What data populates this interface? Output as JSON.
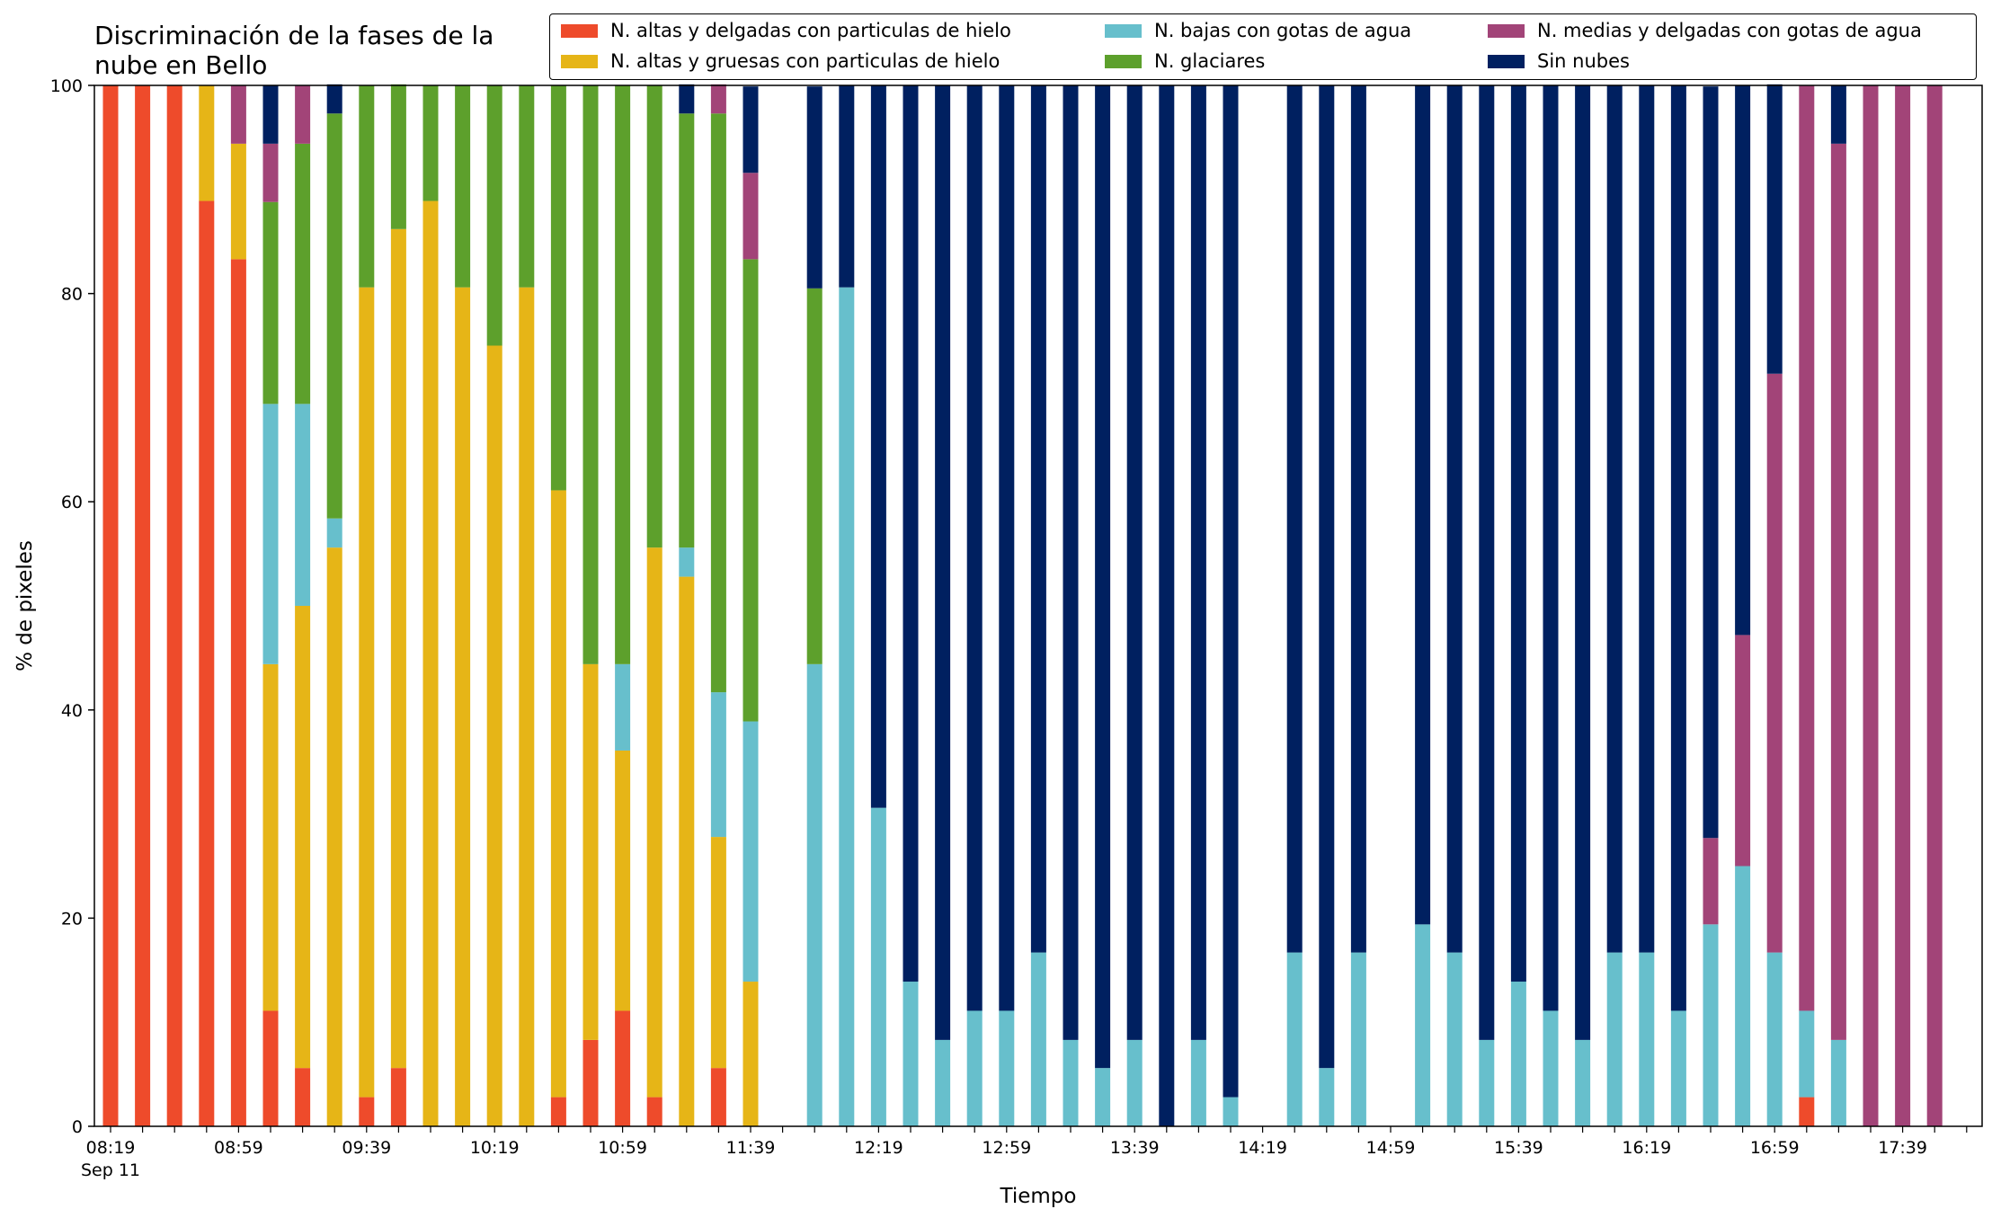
{
  "chart_data": {
    "type": "bar",
    "stacked": true,
    "title_lines": [
      "Discriminación de la fases de la",
      "nube en Bello"
    ],
    "xlabel": "Tiempo",
    "ylabel": "% de pixeles",
    "ylim": [
      0,
      100
    ],
    "yticks": [
      0,
      20,
      40,
      60,
      80,
      100
    ],
    "grid": false,
    "legend_position": "top-right",
    "x_slots": 59,
    "x_tick_labels": [
      {
        "slot": 0,
        "label": "08:19",
        "sublabel": "Sep 11"
      },
      {
        "slot": 4,
        "label": "08:59"
      },
      {
        "slot": 8,
        "label": "09:39"
      },
      {
        "slot": 12,
        "label": "10:19"
      },
      {
        "slot": 16,
        "label": "10:59"
      },
      {
        "slot": 20,
        "label": "11:39"
      },
      {
        "slot": 24,
        "label": "12:19"
      },
      {
        "slot": 28,
        "label": "12:59"
      },
      {
        "slot": 32,
        "label": "13:39"
      },
      {
        "slot": 36,
        "label": "14:19"
      },
      {
        "slot": 40,
        "label": "14:59"
      },
      {
        "slot": 44,
        "label": "15:39"
      },
      {
        "slot": 48,
        "label": "16:19"
      },
      {
        "slot": 52,
        "label": "16:59"
      },
      {
        "slot": 56,
        "label": "17:39"
      }
    ],
    "series": [
      {
        "name": "N. altas y delgadas con particulas de hielo",
        "color": "#ee4b2b"
      },
      {
        "name": "N. altas y gruesas con particulas de hielo",
        "color": "#e6b517"
      },
      {
        "name": "N. bajas con gotas de agua",
        "color": "#67bfcc"
      },
      {
        "name": "N. glaciares",
        "color": "#5da02c"
      },
      {
        "name": "N. medias y delgadas con gotas de agua",
        "color": "#a24478"
      },
      {
        "name": "Sin nubes",
        "color": "#002060"
      }
    ],
    "bars": [
      {
        "slot": 0,
        "values": [
          100,
          0,
          0,
          0,
          0,
          0
        ]
      },
      {
        "slot": 1,
        "values": [
          100,
          0,
          0,
          0,
          0,
          0
        ]
      },
      {
        "slot": 2,
        "values": [
          100,
          0,
          0,
          0,
          0,
          0
        ]
      },
      {
        "slot": 3,
        "values": [
          88.9,
          11.1,
          0,
          0,
          0,
          0
        ]
      },
      {
        "slot": 4,
        "values": [
          83.3,
          11.1,
          0,
          0,
          5.6,
          0
        ]
      },
      {
        "slot": 5,
        "values": [
          11.1,
          33.3,
          25,
          19.4,
          5.6,
          5.6
        ]
      },
      {
        "slot": 6,
        "values": [
          5.6,
          44.4,
          19.4,
          25,
          5.6,
          0
        ]
      },
      {
        "slot": 7,
        "values": [
          0,
          55.6,
          2.8,
          38.9,
          0,
          2.8
        ]
      },
      {
        "slot": 8,
        "values": [
          2.8,
          77.8,
          0,
          19.4,
          0,
          0
        ]
      },
      {
        "slot": 9,
        "values": [
          5.6,
          80.6,
          0,
          13.9,
          0,
          0
        ]
      },
      {
        "slot": 10,
        "values": [
          0,
          88.9,
          0,
          11.1,
          0,
          0
        ]
      },
      {
        "slot": 11,
        "values": [
          0,
          80.6,
          0,
          19.4,
          0,
          0
        ]
      },
      {
        "slot": 12,
        "values": [
          0,
          75,
          0,
          25,
          0,
          0
        ]
      },
      {
        "slot": 13,
        "values": [
          0,
          80.6,
          0,
          19.4,
          0,
          0
        ]
      },
      {
        "slot": 14,
        "values": [
          2.8,
          58.3,
          0,
          38.9,
          0,
          0
        ]
      },
      {
        "slot": 15,
        "values": [
          8.3,
          36.1,
          0,
          55.6,
          0,
          0
        ]
      },
      {
        "slot": 16,
        "values": [
          11.1,
          25,
          8.3,
          55.6,
          0,
          0
        ]
      },
      {
        "slot": 17,
        "values": [
          2.8,
          52.8,
          0,
          44.4,
          0,
          0
        ]
      },
      {
        "slot": 18,
        "values": [
          0,
          52.8,
          2.8,
          41.7,
          0,
          2.8
        ]
      },
      {
        "slot": 19,
        "values": [
          5.6,
          22.2,
          13.9,
          55.6,
          2.8,
          0
        ]
      },
      {
        "slot": 20,
        "values": [
          0,
          13.9,
          25,
          44.4,
          8.3,
          8.3
        ]
      },
      {
        "slot": 22,
        "values": [
          0,
          0,
          44.4,
          36.1,
          0,
          19.4
        ]
      },
      {
        "slot": 23,
        "values": [
          0,
          0,
          80.6,
          0,
          0,
          19.4
        ]
      },
      {
        "slot": 24,
        "values": [
          0,
          0,
          30.6,
          0,
          0,
          69.4
        ]
      },
      {
        "slot": 25,
        "values": [
          0,
          0,
          13.9,
          0,
          0,
          86.1
        ]
      },
      {
        "slot": 26,
        "values": [
          0,
          0,
          8.3,
          0,
          0,
          91.7
        ]
      },
      {
        "slot": 27,
        "values": [
          0,
          0,
          11.1,
          0,
          0,
          88.9
        ]
      },
      {
        "slot": 28,
        "values": [
          0,
          0,
          11.1,
          0,
          0,
          88.9
        ]
      },
      {
        "slot": 29,
        "values": [
          0,
          0,
          16.7,
          0,
          0,
          83.3
        ]
      },
      {
        "slot": 30,
        "values": [
          0,
          0,
          8.3,
          0,
          0,
          91.7
        ]
      },
      {
        "slot": 31,
        "values": [
          0,
          0,
          5.6,
          0,
          0,
          94.4
        ]
      },
      {
        "slot": 32,
        "values": [
          0,
          0,
          8.3,
          0,
          0,
          91.7
        ]
      },
      {
        "slot": 33,
        "values": [
          0,
          0,
          0,
          0,
          0,
          100
        ]
      },
      {
        "slot": 34,
        "values": [
          0,
          0,
          8.3,
          0,
          0,
          91.7
        ]
      },
      {
        "slot": 35,
        "values": [
          0,
          0,
          2.8,
          0,
          0,
          97.2
        ]
      },
      {
        "slot": 37,
        "values": [
          0,
          0,
          16.7,
          0,
          0,
          83.3
        ]
      },
      {
        "slot": 38,
        "values": [
          0,
          0,
          5.6,
          0,
          0,
          94.4
        ]
      },
      {
        "slot": 39,
        "values": [
          0,
          0,
          16.7,
          0,
          0,
          83.3
        ]
      },
      {
        "slot": 41,
        "values": [
          0,
          0,
          19.4,
          0,
          0,
          80.6
        ]
      },
      {
        "slot": 42,
        "values": [
          0,
          0,
          16.7,
          0,
          0,
          83.3
        ]
      },
      {
        "slot": 43,
        "values": [
          0,
          0,
          8.3,
          0,
          0,
          91.7
        ]
      },
      {
        "slot": 44,
        "values": [
          0,
          0,
          13.9,
          0,
          0,
          86.1
        ]
      },
      {
        "slot": 45,
        "values": [
          0,
          0,
          11.1,
          0,
          0,
          88.9
        ]
      },
      {
        "slot": 46,
        "values": [
          0,
          0,
          8.3,
          0,
          0,
          91.7
        ]
      },
      {
        "slot": 47,
        "values": [
          0,
          0,
          16.7,
          0,
          0,
          83.3
        ]
      },
      {
        "slot": 48,
        "values": [
          0,
          0,
          16.7,
          0,
          0,
          83.3
        ]
      },
      {
        "slot": 49,
        "values": [
          0,
          0,
          11.1,
          0,
          0,
          88.9
        ]
      },
      {
        "slot": 50,
        "values": [
          0,
          0,
          19.4,
          0,
          8.3,
          72.2
        ]
      },
      {
        "slot": 51,
        "values": [
          0,
          0,
          25,
          0,
          22.2,
          52.8
        ]
      },
      {
        "slot": 52,
        "values": [
          0,
          0,
          16.7,
          0,
          55.6,
          27.8
        ]
      },
      {
        "slot": 53,
        "values": [
          2.8,
          0,
          8.3,
          0,
          88.9,
          0
        ]
      },
      {
        "slot": 54,
        "values": [
          0,
          0,
          8.3,
          0,
          86.1,
          5.6
        ]
      },
      {
        "slot": 55,
        "values": [
          0,
          0,
          0,
          0,
          100,
          0
        ]
      },
      {
        "slot": 56,
        "values": [
          0,
          0,
          0,
          0,
          100,
          0
        ]
      },
      {
        "slot": 57,
        "values": [
          0,
          0,
          0,
          0,
          100,
          0
        ]
      }
    ]
  }
}
